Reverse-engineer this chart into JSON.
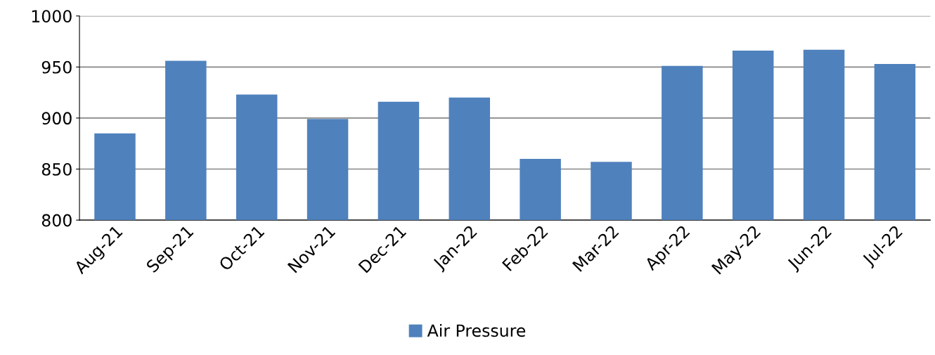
{
  "chart_data": {
    "type": "bar",
    "categories": [
      "Aug-21",
      "Sep-21",
      "Oct-21",
      "Nov-21",
      "Dec-21",
      "Jan-22",
      "Feb-22",
      "Mar-22",
      "Apr-22",
      "May-22",
      "Jun-22",
      "Jul-22"
    ],
    "series": [
      {
        "name": "Air Pressure",
        "color": "#4f81bd",
        "values": [
          885,
          956,
          923,
          899,
          916,
          920,
          860,
          857,
          951,
          966,
          967,
          953
        ]
      }
    ],
    "ylim": [
      800,
      1000
    ],
    "yticks": [
      800,
      850,
      900,
      950,
      1000
    ],
    "grid": "y",
    "legend": "bottom"
  }
}
